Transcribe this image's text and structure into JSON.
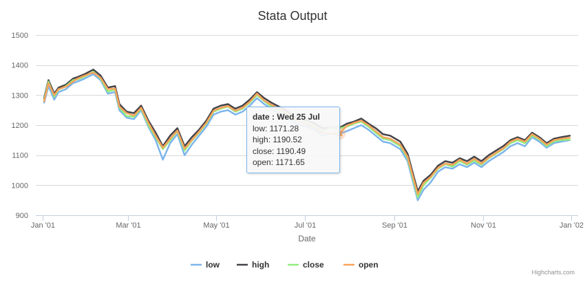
{
  "chart_data": {
    "type": "line",
    "title": "Stata Output",
    "xlabel": "Date",
    "ylabel": "",
    "ylim": [
      900,
      1500
    ],
    "yticks": [
      900,
      1000,
      1100,
      1200,
      1300,
      1400,
      1500
    ],
    "xlim": [
      "2001-01-01",
      "2002-01-01"
    ],
    "xticks": [
      {
        "date": "2001-01-01",
        "label": "Jan '01"
      },
      {
        "date": "2001-03-01",
        "label": "Mar '01"
      },
      {
        "date": "2001-05-01",
        "label": "May '01"
      },
      {
        "date": "2001-07-01",
        "label": "Jul '01"
      },
      {
        "date": "2001-09-01",
        "label": "Sep '01"
      },
      {
        "date": "2001-11-01",
        "label": "Nov '01"
      },
      {
        "date": "2002-01-01",
        "label": "Jan '02"
      }
    ],
    "grid": true,
    "legend_position": "bottom-center",
    "x": [
      "2001-01-02",
      "2001-01-05",
      "2001-01-09",
      "2001-01-12",
      "2001-01-17",
      "2001-01-22",
      "2001-01-25",
      "2001-01-30",
      "2001-02-05",
      "2001-02-10",
      "2001-02-15",
      "2001-02-20",
      "2001-02-23",
      "2001-02-28",
      "2001-03-05",
      "2001-03-10",
      "2001-03-15",
      "2001-03-20",
      "2001-03-25",
      "2001-03-30",
      "2001-04-04",
      "2001-04-09",
      "2001-04-14",
      "2001-04-19",
      "2001-04-24",
      "2001-04-29",
      "2001-05-04",
      "2001-05-09",
      "2001-05-14",
      "2001-05-19",
      "2001-05-24",
      "2001-05-29",
      "2001-06-03",
      "2001-06-08",
      "2001-06-13",
      "2001-06-18",
      "2001-06-23",
      "2001-06-28",
      "2001-07-03",
      "2001-07-08",
      "2001-07-13",
      "2001-07-18",
      "2001-07-25",
      "2001-07-30",
      "2001-08-04",
      "2001-08-09",
      "2001-08-14",
      "2001-08-19",
      "2001-08-24",
      "2001-08-29",
      "2001-09-05",
      "2001-09-10",
      "2001-09-17",
      "2001-09-21",
      "2001-09-26",
      "2001-10-01",
      "2001-10-06",
      "2001-10-11",
      "2001-10-16",
      "2001-10-21",
      "2001-10-26",
      "2001-10-31",
      "2001-11-05",
      "2001-11-10",
      "2001-11-15",
      "2001-11-20",
      "2001-11-25",
      "2001-11-30",
      "2001-12-05",
      "2001-12-10",
      "2001-12-15",
      "2001-12-20",
      "2001-12-25",
      "2001-12-31"
    ],
    "series": [
      {
        "name": "low",
        "color": "#7cb5ec",
        "values": [
          1275,
          1330,
          1285,
          1310,
          1320,
          1340,
          1345,
          1355,
          1370,
          1350,
          1305,
          1310,
          1250,
          1225,
          1220,
          1250,
          1195,
          1150,
          1085,
          1140,
          1170,
          1100,
          1135,
          1165,
          1195,
          1235,
          1245,
          1250,
          1235,
          1245,
          1265,
          1290,
          1270,
          1255,
          1240,
          1230,
          1210,
          1200,
          1195,
          1185,
          1165,
          1171,
          1171,
          1180,
          1190,
          1200,
          1185,
          1165,
          1145,
          1140,
          1120,
          1080,
          950,
          985,
          1010,
          1045,
          1060,
          1055,
          1070,
          1060,
          1075,
          1060,
          1080,
          1095,
          1110,
          1130,
          1140,
          1130,
          1160,
          1145,
          1125,
          1140,
          1145,
          1150
        ]
      },
      {
        "name": "high",
        "color": "#434348",
        "values": [
          1290,
          1350,
          1305,
          1325,
          1335,
          1355,
          1360,
          1370,
          1385,
          1365,
          1325,
          1330,
          1270,
          1245,
          1240,
          1265,
          1215,
          1175,
          1130,
          1165,
          1190,
          1130,
          1160,
          1185,
          1215,
          1255,
          1265,
          1270,
          1255,
          1265,
          1285,
          1310,
          1290,
          1275,
          1262,
          1250,
          1230,
          1220,
          1215,
          1205,
          1190,
          1191,
          1191,
          1205,
          1212,
          1222,
          1205,
          1190,
          1170,
          1165,
          1145,
          1105,
          980,
          1015,
          1035,
          1065,
          1080,
          1075,
          1090,
          1080,
          1095,
          1080,
          1100,
          1115,
          1130,
          1150,
          1160,
          1150,
          1175,
          1160,
          1140,
          1155,
          1160,
          1165
        ]
      },
      {
        "name": "close",
        "color": "#90ed7d",
        "values": [
          1285,
          1345,
          1295,
          1318,
          1330,
          1350,
          1352,
          1362,
          1378,
          1355,
          1312,
          1318,
          1258,
          1230,
          1228,
          1255,
          1200,
          1160,
          1120,
          1150,
          1180,
          1115,
          1148,
          1175,
          1205,
          1245,
          1255,
          1262,
          1245,
          1255,
          1275,
          1300,
          1280,
          1262,
          1250,
          1240,
          1220,
          1212,
          1205,
          1196,
          1180,
          1190,
          1190,
          1195,
          1205,
          1212,
          1195,
          1175,
          1155,
          1150,
          1130,
          1090,
          960,
          1000,
          1025,
          1055,
          1070,
          1062,
          1080,
          1068,
          1082,
          1068,
          1090,
          1105,
          1120,
          1140,
          1150,
          1140,
          1165,
          1152,
          1130,
          1146,
          1150,
          1152
        ]
      },
      {
        "name": "open",
        "color": "#f7a35c",
        "values": [
          1280,
          1340,
          1300,
          1320,
          1328,
          1345,
          1355,
          1365,
          1375,
          1358,
          1320,
          1322,
          1262,
          1240,
          1232,
          1258,
          1208,
          1165,
          1125,
          1155,
          1182,
          1122,
          1150,
          1178,
          1208,
          1248,
          1258,
          1264,
          1248,
          1258,
          1278,
          1305,
          1282,
          1268,
          1255,
          1242,
          1225,
          1210,
          1202,
          1192,
          1175,
          1172,
          1172,
          1198,
          1208,
          1215,
          1200,
          1180,
          1160,
          1155,
          1135,
          1095,
          970,
          1008,
          1028,
          1058,
          1072,
          1068,
          1085,
          1072,
          1088,
          1072,
          1092,
          1108,
          1122,
          1145,
          1155,
          1145,
          1170,
          1155,
          1135,
          1150,
          1155,
          1158
        ]
      }
    ]
  },
  "tooltip": {
    "title": "date : Wed 25 Jul",
    "rows": [
      "low: 1171.28",
      "high: 1190.52",
      "close: 1190.49",
      "open: 1171.65"
    ]
  },
  "credits": "Highcharts.com"
}
